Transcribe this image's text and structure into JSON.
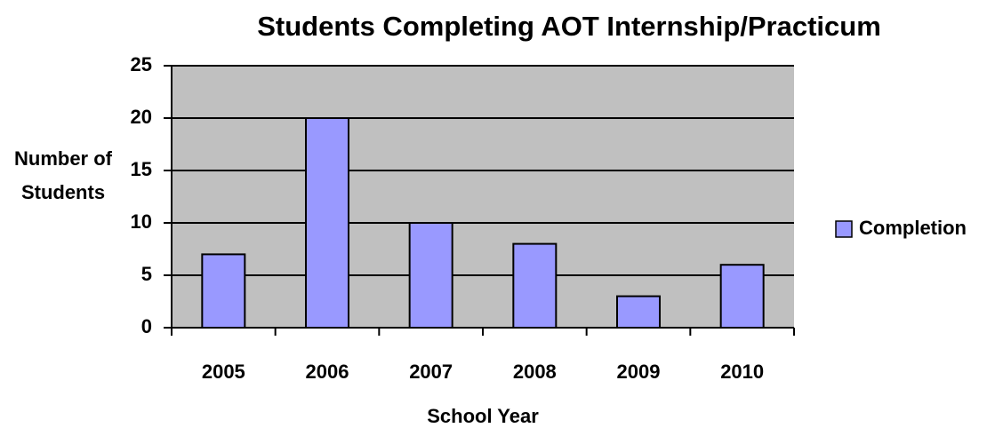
{
  "chart_data": {
    "type": "bar",
    "title": "Students Completing AOT Internship/Practicum",
    "x_label": "School Year",
    "y_label": "Number of Students",
    "categories": [
      "2005",
      "2006",
      "2007",
      "2008",
      "2009",
      "2010"
    ],
    "series": [
      {
        "name": "Completion",
        "color": "#9999ff",
        "values": [
          7,
          20,
          10,
          8,
          3,
          6
        ]
      }
    ],
    "ylim": [
      0,
      25
    ],
    "yticks": [
      0,
      5,
      10,
      15,
      20,
      25
    ],
    "grid": true,
    "legend": "right"
  }
}
